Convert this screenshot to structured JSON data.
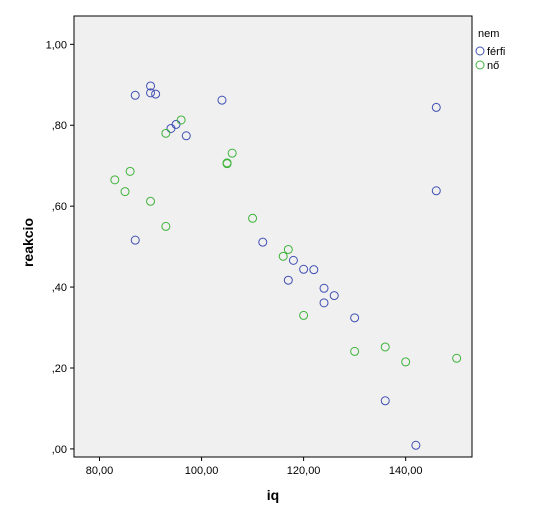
{
  "chart_data": {
    "type": "scatter",
    "xlabel": "iq",
    "ylabel": "reakcio",
    "xlim": [
      75,
      153
    ],
    "ylim": [
      -0.02,
      1.07
    ],
    "xticks": [
      80,
      100,
      120,
      140
    ],
    "xtick_labels": [
      "80,00",
      "100,00",
      "120,00",
      "140,00"
    ],
    "yticks": [
      0,
      0.2,
      0.4,
      0.6,
      0.8,
      1.0
    ],
    "ytick_labels": [
      ",00",
      ",20",
      ",40",
      ",60",
      ",80",
      "1,00"
    ],
    "grid": false,
    "plot_background": "#f0f0f0",
    "legend": {
      "title": "nem",
      "placement": "right",
      "entries": [
        {
          "label": "férfi",
          "color": "#3f4fb3"
        },
        {
          "label": "nő",
          "color": "#3eb33a"
        }
      ]
    },
    "series": [
      {
        "name": "férfi",
        "color": "#3f4fb3",
        "marker": "hollow-circle",
        "points": [
          [
            87,
            0.874
          ],
          [
            90,
            0.897
          ],
          [
            90,
            0.88
          ],
          [
            91,
            0.877
          ],
          [
            87,
            0.516
          ],
          [
            94,
            0.792
          ],
          [
            95,
            0.802
          ],
          [
            97,
            0.774
          ],
          [
            104,
            0.862
          ],
          [
            112,
            0.511
          ],
          [
            117,
            0.417
          ],
          [
            118,
            0.466
          ],
          [
            120,
            0.444
          ],
          [
            122,
            0.443
          ],
          [
            124,
            0.397
          ],
          [
            124,
            0.361
          ],
          [
            126,
            0.379
          ],
          [
            130,
            0.324
          ],
          [
            136,
            0.119
          ],
          [
            142,
            0.009
          ],
          [
            146,
            0.844
          ],
          [
            146,
            0.638
          ]
        ]
      },
      {
        "name": "nő",
        "color": "#3eb33a",
        "marker": "hollow-circle",
        "points": [
          [
            83,
            0.665
          ],
          [
            85,
            0.636
          ],
          [
            86,
            0.686
          ],
          [
            90,
            0.612
          ],
          [
            93,
            0.78
          ],
          [
            93,
            0.55
          ],
          [
            96,
            0.813
          ],
          [
            105,
            0.707
          ],
          [
            105,
            0.705
          ],
          [
            106,
            0.731
          ],
          [
            110,
            0.57
          ],
          [
            116,
            0.476
          ],
          [
            117,
            0.493
          ],
          [
            120,
            0.33
          ],
          [
            130,
            0.241
          ],
          [
            136,
            0.252
          ],
          [
            140,
            0.215
          ],
          [
            150,
            0.224
          ]
        ]
      }
    ]
  }
}
